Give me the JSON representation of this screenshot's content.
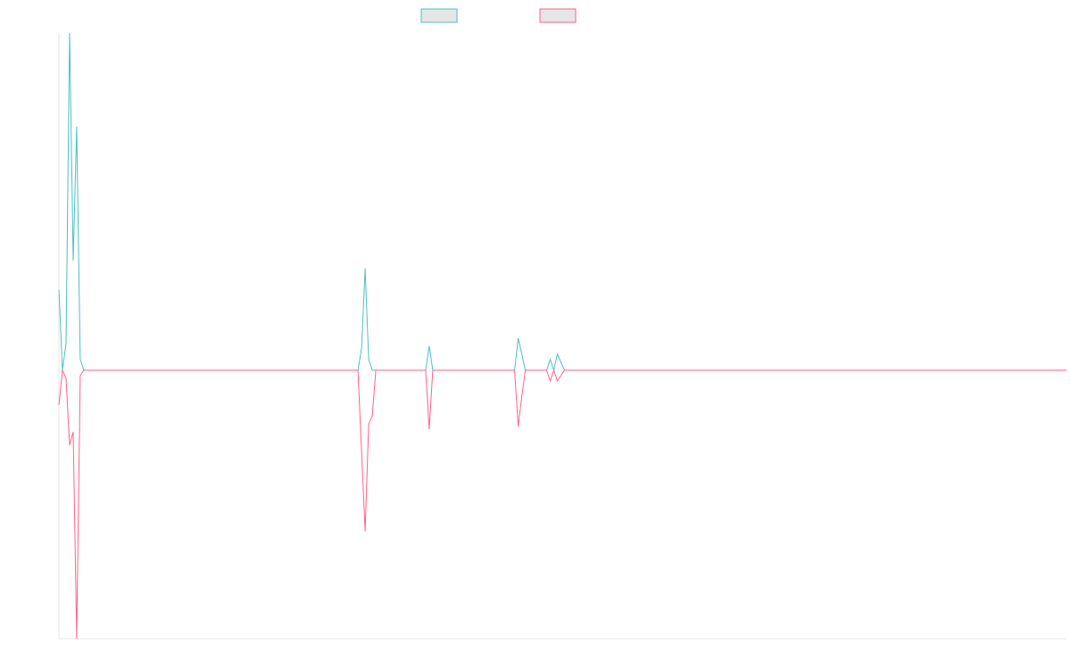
{
  "chart_data": {
    "type": "line",
    "title": "",
    "xlabel": "",
    "ylabel": "",
    "grid": false,
    "legend_position": "top-center",
    "x": [
      0,
      1,
      2,
      3,
      4,
      5,
      6,
      7,
      84,
      85,
      86,
      87,
      88,
      89,
      103,
      104,
      105,
      128,
      129,
      130,
      131,
      132,
      137,
      138,
      139,
      140,
      141,
      142,
      143,
      144,
      145,
      283
    ],
    "ylim": [
      -1,
      1.26
    ],
    "series": [
      {
        "color": "#4bc0c0",
        "fill": "#e6e6e6",
        "values": [
          0.3,
          0.0,
          0.1,
          1.26,
          0.41,
          0.91,
          0.04,
          0.0,
          0.0,
          0.08,
          0.38,
          0.04,
          0.0,
          0.0,
          0.0,
          0.09,
          0.0,
          0.0,
          0.12,
          0.06,
          0.0,
          0.0,
          0.0,
          0.04,
          0.0,
          0.06,
          0.03,
          0.0,
          0.0,
          0.0,
          0.0,
          0.0
        ]
      },
      {
        "color": "#ff6384",
        "fill": "#e6e6e6",
        "values": [
          -0.13,
          0.0,
          -0.03,
          -0.28,
          -0.23,
          -1.0,
          -0.02,
          0.0,
          0.0,
          -0.3,
          -0.6,
          -0.2,
          -0.17,
          0.0,
          0.0,
          -0.22,
          0.0,
          0.0,
          -0.21,
          -0.1,
          0.0,
          0.0,
          0.0,
          -0.04,
          0.0,
          -0.04,
          -0.02,
          0.0,
          0.0,
          0.0,
          0.0,
          0.0
        ]
      }
    ]
  }
}
